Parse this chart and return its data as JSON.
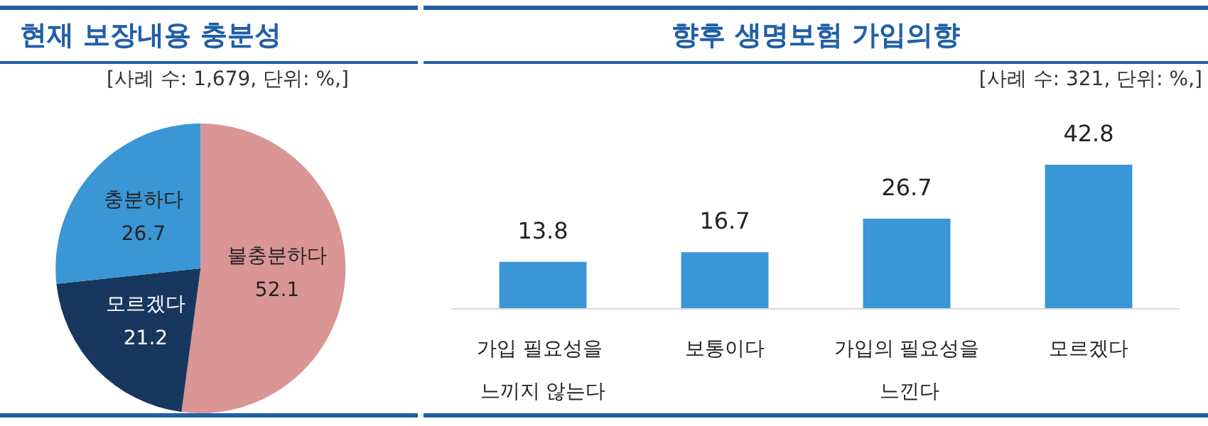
{
  "chart_data": [
    {
      "type": "pie",
      "title": "현재 보장내용 충분성",
      "subtitle": "[사례 수: 1,679, 단위: %,]",
      "categories": [
        "불충분하다",
        "모르겠다",
        "충분하다"
      ],
      "values": [
        52.1,
        21.2,
        26.7
      ],
      "colors": [
        "#d99694",
        "#17375e",
        "#3a96d4"
      ],
      "data_labels": true,
      "legend": false
    },
    {
      "type": "bar",
      "title": "향후 생명보험 가입의향",
      "subtitle": "[사례 수: 321, 단위: %,]",
      "categories": [
        "가입 필요성을 느끼지 않는다",
        "보통이다",
        "가입의 필요성을 느낀다",
        "모르겠다"
      ],
      "values": [
        13.8,
        16.7,
        26.7,
        42.8
      ],
      "color": "#3a96d4",
      "data_labels": true,
      "legend": false
    }
  ]
}
